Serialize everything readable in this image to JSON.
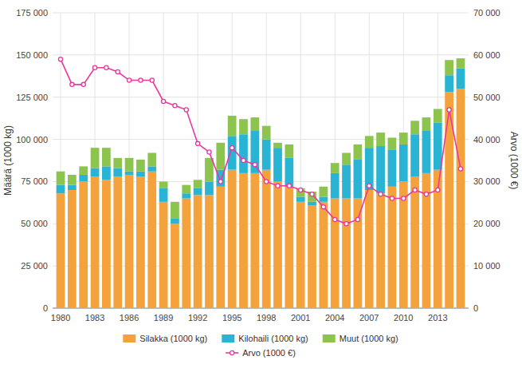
{
  "chart_data": {
    "type": "bar",
    "stacked": true,
    "grid": true,
    "legend": "bottom",
    "x": [
      1980,
      1981,
      1982,
      1983,
      1984,
      1985,
      1986,
      1987,
      1988,
      1989,
      1990,
      1991,
      1992,
      1993,
      1994,
      1995,
      1996,
      1997,
      1998,
      1999,
      2000,
      2001,
      2002,
      2003,
      2004,
      2005,
      2006,
      2007,
      2008,
      2009,
      2010,
      2011,
      2012,
      2013,
      2014,
      2015
    ],
    "xlim": [
      1979.3,
      2015.7
    ],
    "xticks": [
      1980,
      1983,
      1986,
      1989,
      1992,
      1995,
      1998,
      2001,
      2004,
      2007,
      2010,
      2013
    ],
    "ylabel": "Määrä (1000 kg)",
    "ylim": [
      0,
      175000
    ],
    "yticks": [
      0,
      {
        "value": 25000,
        "label": "25 000"
      },
      {
        "value": 50000,
        "label": "50 000"
      },
      {
        "value": 75000,
        "label": "75 000"
      },
      {
        "value": 100000,
        "label": "100 000"
      },
      {
        "value": 125000,
        "label": "125 000"
      },
      {
        "value": 150000,
        "label": "150 000"
      },
      {
        "value": 175000,
        "label": "175 000"
      }
    ],
    "y2label": "Arvo (1000 €)",
    "y2lim": [
      0,
      70000
    ],
    "y2ticks": [
      0,
      {
        "value": 10000,
        "label": "10 000"
      },
      {
        "value": 20000,
        "label": "20 000"
      },
      {
        "value": 30000,
        "label": "30 000"
      },
      {
        "value": 40000,
        "label": "40 000"
      },
      {
        "value": 50000,
        "label": "50 000"
      },
      {
        "value": 60000,
        "label": "60 000"
      },
      {
        "value": 70000,
        "label": "70 000"
      }
    ],
    "series": [
      {
        "name": "Silakka (1000 kg)",
        "color": "#F4A23C",
        "values": [
          68000,
          70000,
          75000,
          78000,
          76000,
          78000,
          79000,
          78000,
          81000,
          63000,
          50000,
          65000,
          67000,
          67000,
          72000,
          82000,
          80000,
          80000,
          82000,
          75000,
          72000,
          63000,
          61000,
          63000,
          65000,
          65000,
          65000,
          70000,
          68000,
          72000,
          75000,
          78000,
          80000,
          82000,
          128000,
          130000
        ]
      },
      {
        "name": "Kilohaili (1000 kg)",
        "color": "#29B4D4",
        "values": [
          5000,
          3000,
          4000,
          5000,
          8000,
          5000,
          2000,
          3000,
          3000,
          8000,
          3000,
          3000,
          4000,
          8000,
          10000,
          20000,
          23000,
          25000,
          18000,
          20000,
          17000,
          3000,
          2000,
          3000,
          15000,
          20000,
          23000,
          25000,
          28000,
          22000,
          22000,
          25000,
          25000,
          28000,
          10000,
          12000
        ]
      },
      {
        "name": "Muut (1000 kg)",
        "color": "#8DC44E",
        "values": [
          8000,
          6000,
          5000,
          12000,
          11000,
          6000,
          8000,
          7000,
          8000,
          4000,
          10000,
          5000,
          5000,
          14000,
          16000,
          12000,
          9000,
          8000,
          8000,
          3000,
          8000,
          5000,
          6000,
          6000,
          6000,
          7000,
          9000,
          7000,
          8000,
          7000,
          7000,
          8000,
          8000,
          8000,
          9000,
          6000
        ]
      },
      {
        "name": "Arvo (1000 €)",
        "type": "line",
        "axis": "y2",
        "color": "#E8399C",
        "marker": "circle",
        "values": [
          59000,
          53000,
          53000,
          57000,
          57000,
          56000,
          54000,
          54000,
          54000,
          49000,
          48000,
          47000,
          39000,
          37000,
          30000,
          38000,
          35000,
          34000,
          30000,
          29000,
          29000,
          28000,
          27000,
          24000,
          21000,
          20000,
          21000,
          29000,
          27000,
          26000,
          26000,
          28000,
          27000,
          28000,
          47000,
          33000
        ]
      }
    ]
  }
}
